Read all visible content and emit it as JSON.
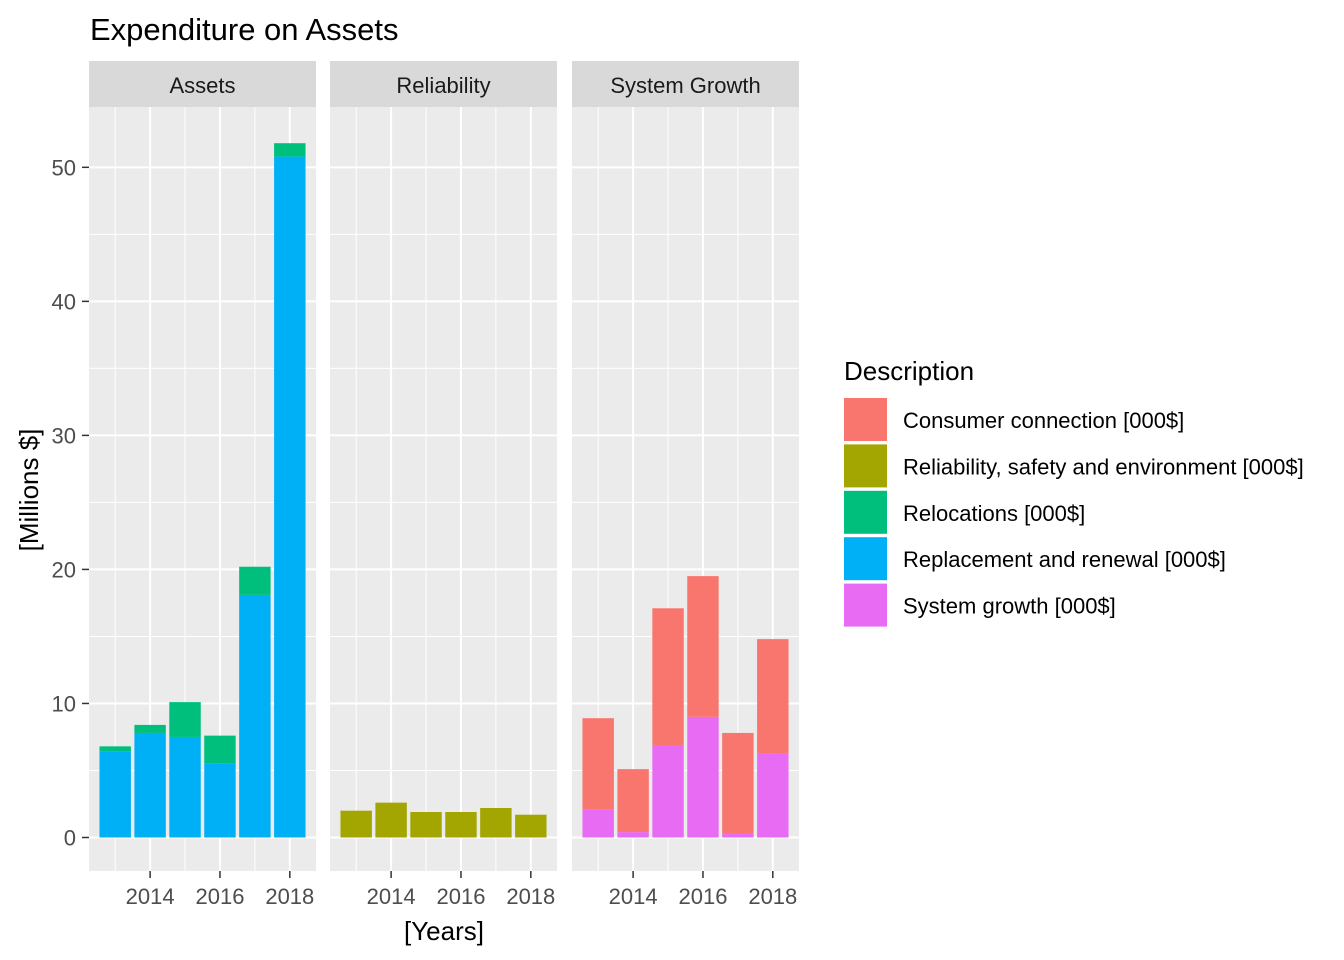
{
  "chart_data": {
    "type": "bar",
    "stacked": true,
    "faceted": true,
    "title": "Expenditure on Assets",
    "xlabel": "[Years]",
    "ylabel": "[Millions $]",
    "ylim": [
      -2.5,
      54.5
    ],
    "yticks": [
      0,
      10,
      20,
      30,
      40,
      50
    ],
    "xlim": [
      2012.25,
      2018.75
    ],
    "xticks": [
      2014,
      2016,
      2018
    ],
    "x": [
      2013,
      2014,
      2015,
      2016,
      2017,
      2018
    ],
    "grid": true,
    "legend": {
      "title": "Description",
      "position": "right",
      "items": [
        {
          "label": "Consumer connection [000$]",
          "color": "#F8766D"
        },
        {
          "label": "Reliability, safety and environment [000$]",
          "color": "#A3A500"
        },
        {
          "label": "Relocations [000$]",
          "color": "#00BF7D"
        },
        {
          "label": "Replacement and renewal [000$]",
          "color": "#00B0F6"
        },
        {
          "label": "System growth [000$]",
          "color": "#E76BF3"
        }
      ]
    },
    "panels": [
      {
        "title": "Assets",
        "series": [
          {
            "name": "Replacement and renewal [000$]",
            "color": "#00B0F6",
            "values": [
              6.4,
              7.8,
              7.5,
              5.5,
              18.1,
              50.8
            ]
          },
          {
            "name": "Relocations [000$]",
            "color": "#00BF7D",
            "values": [
              0.4,
              0.6,
              2.6,
              2.1,
              2.1,
              1.0
            ]
          }
        ]
      },
      {
        "title": "Reliability",
        "series": [
          {
            "name": "Reliability, safety and environment [000$]",
            "color": "#A3A500",
            "values": [
              2.0,
              2.6,
              1.9,
              1.9,
              2.2,
              1.7
            ]
          }
        ]
      },
      {
        "title": "System Growth",
        "series": [
          {
            "name": "System growth [000$]",
            "color": "#E76BF3",
            "values": [
              2.1,
              0.4,
              6.9,
              9.0,
              0.3,
              6.3
            ]
          },
          {
            "name": "Consumer connection [000$]",
            "color": "#F8766D",
            "values": [
              6.8,
              4.7,
              10.2,
              10.5,
              7.5,
              8.5
            ]
          }
        ]
      }
    ]
  }
}
